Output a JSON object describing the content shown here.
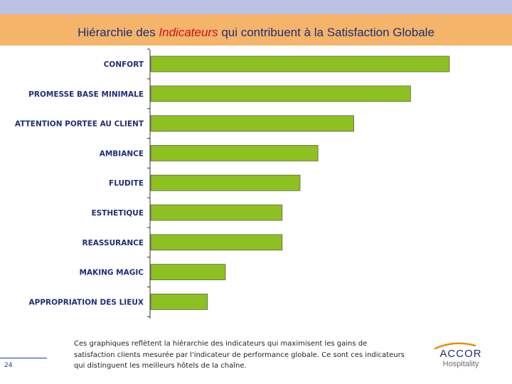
{
  "header": {
    "title_pre": "Hiérarchie des ",
    "title_highlight": "Indicateurs",
    "title_post": " qui contribuent à la Satisfaction Globale"
  },
  "chart_data": {
    "type": "bar",
    "orientation": "horizontal",
    "categories": [
      "CONFORT",
      "PROMESSE BASE MINIMALE",
      "ATTENTION PORTEE AU CLIENT",
      "AMBIANCE",
      "FLUDITE",
      "ESTHETIQUE",
      "REASSURANCE",
      "MAKING MAGIC",
      "APPROPRIATION DES LIEUX"
    ],
    "values": [
      100,
      87,
      68,
      56,
      50,
      44,
      44,
      25,
      19
    ],
    "title": "",
    "xlabel": "",
    "ylabel": "",
    "xlim": [
      0,
      100
    ],
    "grid": false,
    "legend": "none",
    "bar_color": "#8dc021",
    "label_color": "#1f2d78"
  },
  "footer": {
    "page_number": "24",
    "caption": "Ces graphiques reflètent la hiérarchie des indicateurs qui maximisent les gains de satisfaction clients mesurée par l'indicateur de performance globale.  Ce sont ces indicateurs qui distinguent les meilleurs hôtels de la chaîne."
  },
  "logo": {
    "brand": "ACCOR",
    "subtitle": "Hospitality",
    "brand_color": "#1f2d78",
    "subtitle_color": "#6c6c6c"
  }
}
